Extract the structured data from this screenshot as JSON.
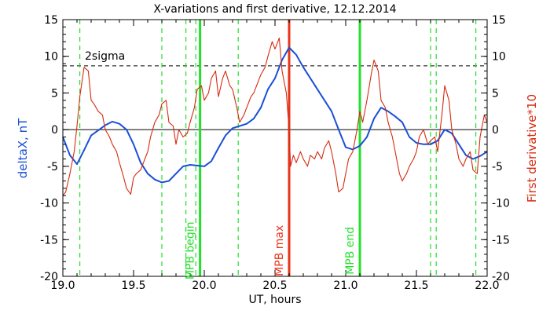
{
  "chart_data": {
    "type": "line",
    "title": "X-variations and first derivative, 12.12.2014",
    "xlabel": "UT, hours",
    "ylabel_left": "deltaX, nT",
    "ylabel_right": "First derivative*10",
    "xlim": [
      19.0,
      22.0
    ],
    "ylim": [
      -20,
      15
    ],
    "xticks": [
      "19.0",
      "19.5",
      "20.0",
      "20.5",
      "21.0",
      "21.5",
      "22.0"
    ],
    "yticks_left": [
      "-20",
      "-15",
      "-10",
      "-5",
      "0",
      "5",
      "10",
      "15"
    ],
    "yticks_right": [
      "-20",
      "-15",
      "-10",
      "-5",
      "0",
      "5",
      "10",
      "15"
    ],
    "sigma_label": "2sigma",
    "sigma_level": 8.7,
    "zero_level": 0,
    "colors": {
      "deltaX": "#1a4fd6",
      "derivative": "#d62a10",
      "markers": "#22e02a",
      "max_marker": "#e8341a",
      "axes": "#000000"
    },
    "series": [
      {
        "key": "deltaX",
        "axis": "left",
        "x": [
          19.0,
          19.05,
          19.1,
          19.15,
          19.2,
          19.25,
          19.3,
          19.35,
          19.4,
          19.45,
          19.5,
          19.55,
          19.6,
          19.65,
          19.7,
          19.75,
          19.8,
          19.85,
          19.9,
          19.95,
          20.0,
          20.05,
          20.1,
          20.15,
          20.2,
          20.25,
          20.3,
          20.35,
          20.4,
          20.45,
          20.5,
          20.55,
          20.6,
          20.65,
          20.7,
          20.75,
          20.8,
          20.85,
          20.9,
          20.95,
          21.0,
          21.05,
          21.1,
          21.15,
          21.2,
          21.25,
          21.3,
          21.35,
          21.4,
          21.45,
          21.5,
          21.55,
          21.6,
          21.65,
          21.7,
          21.75,
          21.8,
          21.85,
          21.9,
          21.95,
          22.0
        ],
        "y": [
          -1.0,
          -3.5,
          -4.7,
          -2.8,
          -0.8,
          -0.1,
          0.6,
          1.1,
          0.8,
          0.0,
          -2.0,
          -4.5,
          -6.0,
          -6.8,
          -7.2,
          -7.0,
          -6.0,
          -5.0,
          -4.8,
          -4.9,
          -5.0,
          -4.3,
          -2.5,
          -0.8,
          0.2,
          0.5,
          0.8,
          1.5,
          3.0,
          5.5,
          7.0,
          9.5,
          11.2,
          10.2,
          8.5,
          7.0,
          5.5,
          4.0,
          2.5,
          0.0,
          -2.4,
          -2.7,
          -2.2,
          -1.0,
          1.5,
          3.0,
          2.5,
          1.8,
          1.0,
          -1.0,
          -1.8,
          -2.0,
          -2.0,
          -1.5,
          0.0,
          -0.5,
          -2.0,
          -3.5,
          -4.0,
          -3.6,
          -3.0
        ]
      },
      {
        "key": "derivative",
        "axis": "right",
        "x": [
          19.0,
          19.02,
          19.05,
          19.08,
          19.1,
          19.12,
          19.15,
          19.18,
          19.2,
          19.22,
          19.25,
          19.28,
          19.3,
          19.33,
          19.35,
          19.38,
          19.4,
          19.43,
          19.45,
          19.48,
          19.5,
          19.52,
          19.55,
          19.58,
          19.6,
          19.62,
          19.65,
          19.68,
          19.7,
          19.73,
          19.75,
          19.78,
          19.8,
          19.82,
          19.85,
          19.88,
          19.9,
          19.93,
          19.95,
          19.98,
          20.0,
          20.03,
          20.05,
          20.08,
          20.1,
          20.13,
          20.15,
          20.18,
          20.2,
          20.23,
          20.25,
          20.28,
          20.3,
          20.33,
          20.35,
          20.38,
          20.4,
          20.43,
          20.45,
          20.48,
          20.5,
          20.53,
          20.55,
          20.58,
          20.6,
          20.61,
          20.63,
          20.65,
          20.68,
          20.7,
          20.73,
          20.75,
          20.78,
          20.8,
          20.83,
          20.85,
          20.88,
          20.9,
          20.93,
          20.95,
          20.98,
          21.0,
          21.02,
          21.05,
          21.08,
          21.1,
          21.12,
          21.15,
          21.18,
          21.2,
          21.23,
          21.25,
          21.28,
          21.3,
          21.33,
          21.35,
          21.38,
          21.4,
          21.43,
          21.45,
          21.48,
          21.5,
          21.52,
          21.55,
          21.58,
          21.6,
          21.63,
          21.65,
          21.68,
          21.7,
          21.73,
          21.75,
          21.78,
          21.8,
          21.83,
          21.85,
          21.88,
          21.9,
          21.93,
          21.95,
          21.98,
          22.0
        ],
        "y": [
          -9.0,
          -8.5,
          -6.0,
          -3.0,
          0.5,
          4.5,
          8.5,
          8.0,
          4.0,
          3.5,
          2.5,
          2.0,
          0.0,
          -1.0,
          -2.0,
          -3.0,
          -4.5,
          -6.5,
          -8.0,
          -8.8,
          -6.5,
          -6.0,
          -5.5,
          -4.0,
          -3.0,
          -1.0,
          1.0,
          2.0,
          3.5,
          4.0,
          1.0,
          0.5,
          -2.0,
          0.0,
          -1.0,
          -0.5,
          1.0,
          3.0,
          5.5,
          6.0,
          4.0,
          5.0,
          7.0,
          8.0,
          4.5,
          7.0,
          8.0,
          6.0,
          5.5,
          3.0,
          1.0,
          2.0,
          3.0,
          4.5,
          5.0,
          6.5,
          7.5,
          8.5,
          10.0,
          12.0,
          11.0,
          12.5,
          8.0,
          5.0,
          0.0,
          -5.0,
          -3.5,
          -4.5,
          -3.0,
          -4.0,
          -5.0,
          -3.5,
          -4.0,
          -3.0,
          -4.0,
          -2.5,
          -1.5,
          -3.0,
          -6.0,
          -8.5,
          -8.0,
          -6.0,
          -4.0,
          -3.0,
          0.0,
          2.5,
          1.0,
          4.0,
          7.5,
          9.5,
          8.0,
          4.0,
          3.0,
          1.0,
          -1.0,
          -3.0,
          -6.0,
          -7.0,
          -6.0,
          -5.0,
          -4.0,
          -3.0,
          -1.0,
          0.0,
          -2.0,
          -1.5,
          -1.0,
          -3.0,
          2.0,
          6.0,
          4.0,
          0.0,
          -2.0,
          -4.0,
          -5.0,
          -4.0,
          -3.0,
          -5.5,
          -6.0,
          -1.0,
          2.0,
          1.0
        ]
      }
    ],
    "markers": [
      {
        "x": 19.12,
        "style": "dashed",
        "color": "#22e02a"
      },
      {
        "x": 19.7,
        "style": "dashed",
        "color": "#22e02a"
      },
      {
        "x": 19.87,
        "style": "dashed",
        "color": "#22e02a"
      },
      {
        "x": 19.94,
        "style": "dashed",
        "color": "#22e02a"
      },
      {
        "x": 19.97,
        "style": "solid",
        "color": "#22e02a",
        "label": "MPB begin"
      },
      {
        "x": 20.24,
        "style": "dashed",
        "color": "#22e02a"
      },
      {
        "x": 20.6,
        "style": "solid",
        "color": "#e8341a",
        "label": "MPB max"
      },
      {
        "x": 21.1,
        "style": "solid",
        "color": "#22e02a",
        "label": "MPB end"
      },
      {
        "x": 21.6,
        "style": "dashed",
        "color": "#22e02a"
      },
      {
        "x": 21.64,
        "style": "dashed",
        "color": "#22e02a"
      },
      {
        "x": 21.92,
        "style": "dashed",
        "color": "#22e02a"
      }
    ]
  }
}
